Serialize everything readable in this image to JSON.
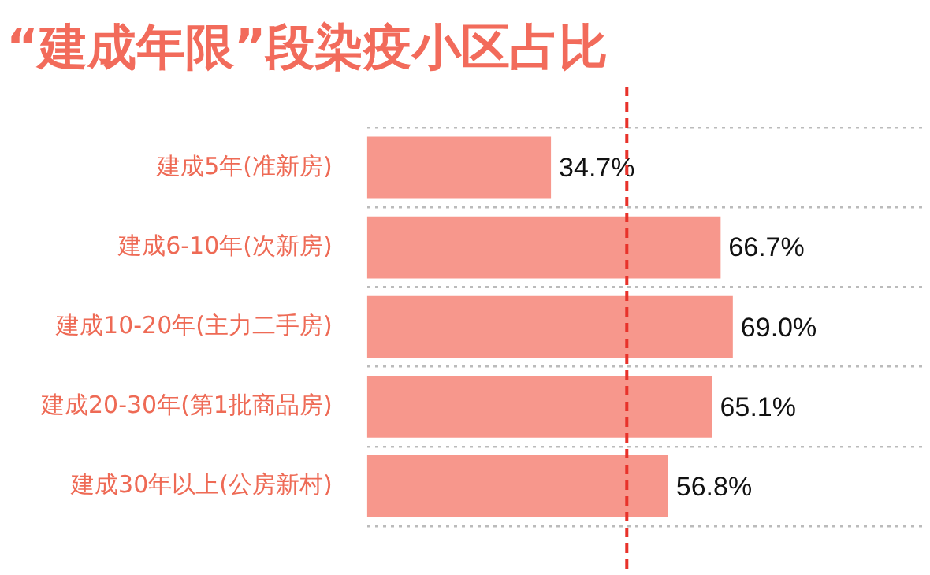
{
  "chart_data": {
    "type": "bar",
    "orientation": "horizontal",
    "title": "“建成年限”段染疫小区占比",
    "categories": [
      "建成5年(准新房)",
      "建成6-10年(次新房)",
      "建成10-20年(主力二手房)",
      "建成20-30年(第1批商品房)",
      "建成30年以上(公房新村)"
    ],
    "values": [
      34.7,
      66.7,
      69.0,
      65.1,
      56.8
    ],
    "value_labels": [
      "34.7%",
      "66.7%",
      "69.0%",
      "65.1%",
      "56.8%"
    ],
    "color": "#f7978c",
    "xlim": [
      0,
      105
    ],
    "tick_labels": "y",
    "grid": "y",
    "ref_lines": [
      {
        "axis": "x",
        "value": 49,
        "color": "#e8322a",
        "line_style": "dashed"
      }
    ]
  }
}
